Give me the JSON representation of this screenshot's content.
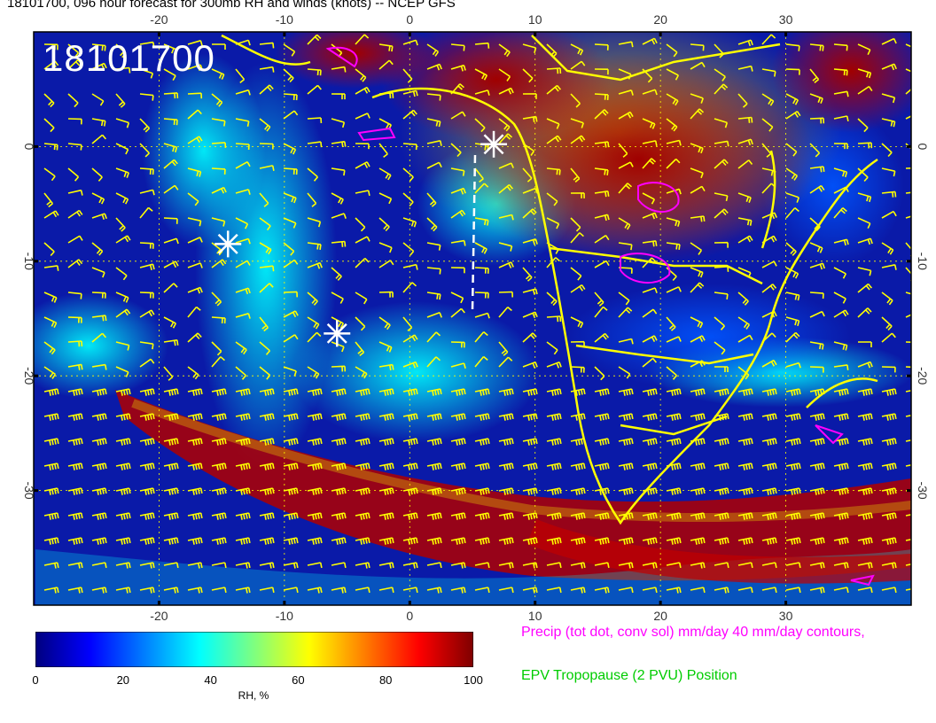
{
  "title": "18101700, 096 hour forecast for 300mb RH and winds (knots) -- NCEP GFS",
  "stamp": "18101700",
  "axes": {
    "lon_ticks": [
      "-20",
      "-10",
      "0",
      "10",
      "20",
      "30"
    ],
    "lat_ticks": [
      "0",
      "-10",
      "-20",
      "-30"
    ],
    "lon_range": [
      -30,
      40
    ],
    "lat_range": [
      -40,
      10
    ]
  },
  "colorbar": {
    "ticks": [
      "0",
      "20",
      "40",
      "60",
      "80",
      "100"
    ],
    "label": "RH, %",
    "range": [
      0,
      100
    ],
    "colors": [
      "#00007f",
      "#0000ff",
      "#007fff",
      "#00ffff",
      "#7fff7f",
      "#ffff00",
      "#ff7f00",
      "#ff0000",
      "#7f0000"
    ]
  },
  "legend": {
    "precip": "Precip (tot dot, conv sol) mm/day 40 mm/day contours,",
    "epv": "EPV Tropopause (2 PVU) Position"
  },
  "colors": {
    "coast": "#ffff00",
    "barbs": "#ffff00",
    "precip": "#ff00ff",
    "markers": "#ffffff"
  },
  "markers": [
    {
      "name": "storm-marker-1",
      "lon": -14.5,
      "lat": -8.5
    },
    {
      "name": "storm-marker-2",
      "lon": -5.8,
      "lat": -16.3
    },
    {
      "name": "storm-marker-3",
      "lon": 6.7,
      "lat": 0.2
    }
  ]
}
